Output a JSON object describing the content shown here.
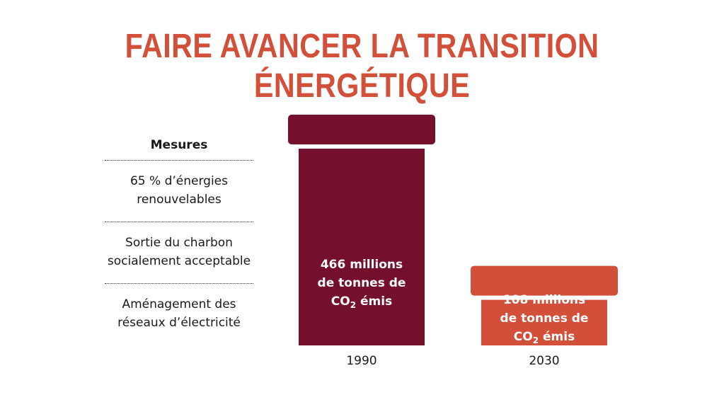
{
  "title": "FAIRE AVANCER LA TRANSITION ÉNERGÉTIQUE",
  "colors": {
    "title": "#d2503a",
    "bar_1990": "#75102c",
    "bar_2030": "#d2503a"
  },
  "measures": {
    "heading": "Mesures",
    "items": [
      {
        "line1": "65 % d’énergies",
        "line2": "renouvelables"
      },
      {
        "line1": "Sortie du charbon",
        "line2": "socialement acceptable"
      },
      {
        "line1": "Aménagement des",
        "line2": "réseaux d’électricité"
      }
    ]
  },
  "chart_data": {
    "type": "bar",
    "categories": [
      "1990",
      "2030"
    ],
    "values": [
      466,
      108
    ],
    "unit": "millions de tonnes de CO2 émis",
    "labels": [
      {
        "line1": "466 millions",
        "line2": "de tonnes de",
        "line3_a": "CO",
        "line3_sub": "2",
        "line3_b": " émis"
      },
      {
        "line1": "108 millions",
        "line2": "de tonnes de",
        "line3_a": "CO",
        "line3_sub": "2",
        "line3_b": " émis"
      }
    ]
  }
}
